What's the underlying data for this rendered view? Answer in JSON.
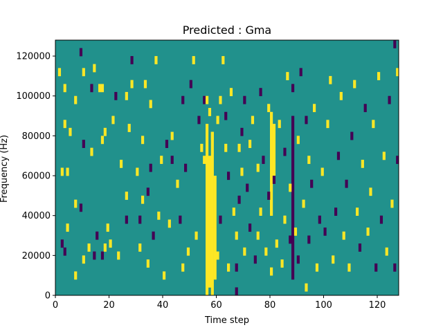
{
  "chart_data": {
    "type": "heatmap",
    "title": "Predicted : Gma",
    "xlabel": "Time step",
    "ylabel": "Frequency (Hz)",
    "xlim": [
      0,
      128
    ],
    "ylim": [
      0,
      128000
    ],
    "x_ticks": [
      0,
      20,
      40,
      60,
      80,
      100,
      120
    ],
    "y_ticks": [
      0,
      20000,
      40000,
      60000,
      80000,
      100000,
      120000
    ],
    "cell_width": 1,
    "cell_height": 4000,
    "colors": {
      "background": "#21918c",
      "low": "#440154",
      "high": "#fde725"
    },
    "value_levels": [
      -1,
      0,
      1
    ],
    "nonzero_cells": [
      [
        1,
        110000,
        1
      ],
      [
        2,
        24000,
        -1
      ],
      [
        2,
        60000,
        1
      ],
      [
        3,
        20000,
        -1
      ],
      [
        3,
        84000,
        1
      ],
      [
        3,
        102000,
        1
      ],
      [
        4,
        32000,
        1
      ],
      [
        4,
        60000,
        1
      ],
      [
        5,
        80000,
        1
      ],
      [
        7,
        8000,
        1
      ],
      [
        7,
        44000,
        1
      ],
      [
        7,
        96000,
        1
      ],
      [
        9,
        120000,
        -1
      ],
      [
        9,
        42000,
        -1
      ],
      [
        10,
        110000,
        1
      ],
      [
        10,
        16000,
        1
      ],
      [
        10,
        74000,
        -1
      ],
      [
        12,
        22000,
        1
      ],
      [
        13,
        70000,
        1
      ],
      [
        13,
        102000,
        -1
      ],
      [
        14,
        18000,
        -1
      ],
      [
        14,
        112000,
        1
      ],
      [
        15,
        28000,
        -1
      ],
      [
        16,
        102000,
        1
      ],
      [
        17,
        18000,
        -1
      ],
      [
        17,
        102000,
        1
      ],
      [
        17,
        76000,
        1
      ],
      [
        18,
        22000,
        1
      ],
      [
        18,
        80000,
        1
      ],
      [
        19,
        32000,
        1
      ],
      [
        20,
        24000,
        1
      ],
      [
        21,
        86000,
        1
      ],
      [
        22,
        98000,
        -1
      ],
      [
        23,
        18000,
        1
      ],
      [
        24,
        64000,
        1
      ],
      [
        26,
        36000,
        -1
      ],
      [
        26,
        48000,
        1
      ],
      [
        26,
        98000,
        1
      ],
      [
        27,
        82000,
        1
      ],
      [
        28,
        104000,
        1
      ],
      [
        28,
        116000,
        -1
      ],
      [
        30,
        60000,
        1
      ],
      [
        31,
        22000,
        1
      ],
      [
        31,
        36000,
        -1
      ],
      [
        32,
        76000,
        1
      ],
      [
        32,
        46000,
        1
      ],
      [
        33,
        104000,
        1
      ],
      [
        34,
        50000,
        -1
      ],
      [
        34,
        14000,
        1
      ],
      [
        35,
        62000,
        -1
      ],
      [
        35,
        94000,
        1
      ],
      [
        36,
        28000,
        -1
      ],
      [
        37,
        116000,
        1
      ],
      [
        38,
        38000,
        1
      ],
      [
        39,
        66000,
        1
      ],
      [
        40,
        8000,
        1
      ],
      [
        41,
        74000,
        -1
      ],
      [
        42,
        34000,
        1
      ],
      [
        43,
        66000,
        -1
      ],
      [
        43,
        78000,
        1
      ],
      [
        45,
        54000,
        1
      ],
      [
        46,
        36000,
        -1
      ],
      [
        47,
        12000,
        1
      ],
      [
        47,
        96000,
        -1
      ],
      [
        48,
        62000,
        -1
      ],
      [
        49,
        20000,
        1
      ],
      [
        50,
        104000,
        -1
      ],
      [
        51,
        116000,
        1
      ],
      [
        52,
        28000,
        1
      ],
      [
        53,
        86000,
        -1
      ],
      [
        54,
        72000,
        1
      ],
      [
        55,
        66000,
        1
      ],
      [
        55,
        96000,
        -1
      ],
      [
        56,
        96000,
        1
      ],
      [
        57,
        90000,
        1
      ],
      [
        57,
        40000,
        1
      ],
      [
        58,
        78000,
        1
      ],
      [
        58,
        30000,
        1
      ],
      [
        60,
        86000,
        1
      ],
      [
        60,
        18000,
        1
      ],
      [
        61,
        96000,
        1
      ],
      [
        61,
        36000,
        -1
      ],
      [
        62,
        116000,
        1
      ],
      [
        63,
        88000,
        -1
      ],
      [
        63,
        72000,
        1
      ],
      [
        64,
        12000,
        1
      ],
      [
        64,
        58000,
        -1
      ],
      [
        65,
        100000,
        1
      ],
      [
        66,
        40000,
        1
      ],
      [
        67,
        12000,
        -1
      ],
      [
        67,
        28000,
        1
      ],
      [
        68,
        72000,
        1
      ],
      [
        68,
        46000,
        -1
      ],
      [
        69,
        80000,
        -1
      ],
      [
        69,
        60000,
        1
      ],
      [
        70,
        96000,
        -1
      ],
      [
        70,
        20000,
        1
      ],
      [
        71,
        52000,
        -1
      ],
      [
        72,
        74000,
        1
      ],
      [
        72,
        32000,
        -1
      ],
      [
        73,
        86000,
        1
      ],
      [
        74,
        16000,
        -1
      ],
      [
        75,
        62000,
        1
      ],
      [
        75,
        28000,
        1
      ],
      [
        76,
        100000,
        -1
      ],
      [
        76,
        40000,
        1
      ],
      [
        77,
        66000,
        -1
      ],
      [
        78,
        20000,
        1
      ],
      [
        79,
        92000,
        1
      ],
      [
        79,
        48000,
        -1
      ],
      [
        80,
        10000,
        1
      ],
      [
        81,
        56000,
        -1
      ],
      [
        82,
        24000,
        1
      ],
      [
        83,
        84000,
        1
      ],
      [
        84,
        14000,
        1
      ],
      [
        85,
        70000,
        -1
      ],
      [
        85,
        36000,
        1
      ],
      [
        86,
        108000,
        1
      ],
      [
        87,
        26000,
        -1
      ],
      [
        87,
        52000,
        1
      ],
      [
        88,
        102000,
        -1
      ],
      [
        89,
        30000,
        1
      ],
      [
        90,
        76000,
        1
      ],
      [
        90,
        16000,
        -1
      ],
      [
        91,
        110000,
        -1
      ],
      [
        92,
        44000,
        1
      ],
      [
        93,
        2000,
        1
      ],
      [
        93,
        86000,
        -1
      ],
      [
        94,
        26000,
        -1
      ],
      [
        94,
        66000,
        1
      ],
      [
        95,
        54000,
        -1
      ],
      [
        96,
        92000,
        1
      ],
      [
        97,
        12000,
        1
      ],
      [
        98,
        36000,
        -1
      ],
      [
        99,
        60000,
        1
      ],
      [
        100,
        30000,
        -1
      ],
      [
        101,
        84000,
        1
      ],
      [
        102,
        106000,
        1
      ],
      [
        103,
        16000,
        1
      ],
      [
        104,
        40000,
        -1
      ],
      [
        105,
        68000,
        -1
      ],
      [
        106,
        98000,
        1
      ],
      [
        107,
        28000,
        1
      ],
      [
        108,
        54000,
        -1
      ],
      [
        109,
        12000,
        1
      ],
      [
        110,
        78000,
        -1
      ],
      [
        111,
        104000,
        1
      ],
      [
        112,
        40000,
        1
      ],
      [
        113,
        22000,
        -1
      ],
      [
        114,
        64000,
        1
      ],
      [
        115,
        92000,
        -1
      ],
      [
        116,
        30000,
        1
      ],
      [
        117,
        50000,
        1
      ],
      [
        118,
        84000,
        1
      ],
      [
        119,
        12000,
        -1
      ],
      [
        120,
        108000,
        1
      ],
      [
        121,
        36000,
        -1
      ],
      [
        122,
        68000,
        1
      ],
      [
        123,
        20000,
        1
      ],
      [
        124,
        96000,
        -1
      ],
      [
        125,
        44000,
        1
      ],
      [
        126,
        12000,
        -1
      ],
      [
        127,
        66000,
        -1
      ],
      [
        127,
        110000,
        1
      ],
      [
        126,
        124000,
        -1
      ]
    ],
    "bands": [
      {
        "x": 56,
        "y_from": 0,
        "y_to": 86000,
        "v": 1
      },
      {
        "x": 57,
        "y_from": 4000,
        "y_to": 70000,
        "v": 1
      },
      {
        "x": 58,
        "y_from": 0,
        "y_to": 82000,
        "v": 1
      },
      {
        "x": 59,
        "y_from": 8000,
        "y_to": 60000,
        "v": 1
      },
      {
        "x": 80,
        "y_from": 40000,
        "y_to": 92000,
        "v": 1
      },
      {
        "x": 81,
        "y_from": 58000,
        "y_to": 86000,
        "v": 1
      },
      {
        "x": 67,
        "y_from": 0,
        "y_to": 4000,
        "v": -1
      },
      {
        "x": 88,
        "y_from": 8000,
        "y_to": 90000,
        "v": -1
      }
    ]
  }
}
